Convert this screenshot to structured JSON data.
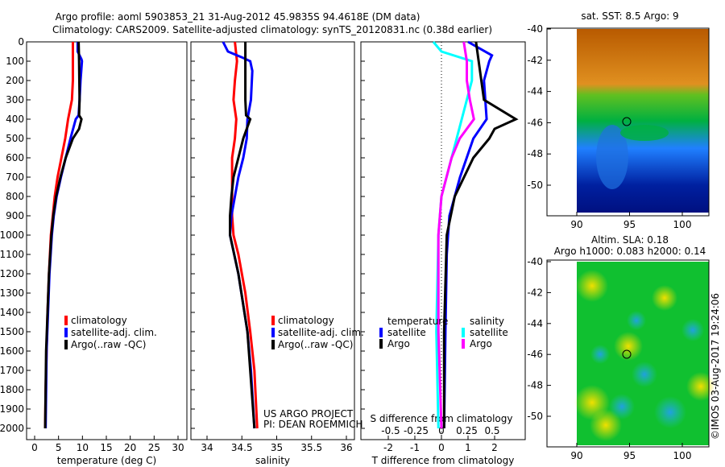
{
  "title_line1": "Argo profile: aoml 5903853_21 31-Aug-2012 45.9835S 94.4618E (DM data)",
  "title_line2": "Climatology: CARS2009. Satellite-adjusted climatology: synTS_20120831.nc (0.38d earlier)",
  "colors": {
    "climatology": "#ff0000",
    "satellite": "#0000ff",
    "argo": "#000000",
    "sal_satellite": "#00ffff",
    "sal_argo": "#ff00ff"
  },
  "chart_data": [
    {
      "type": "line",
      "xlabel": "temperature (deg C)",
      "ylabel": "",
      "xlim": [
        -1,
        31
      ],
      "ylim": [
        2050,
        0
      ],
      "xticks": [
        0,
        5,
        10,
        15,
        20,
        25,
        30
      ],
      "yticks": [
        0,
        100,
        200,
        300,
        400,
        500,
        600,
        700,
        800,
        900,
        1000,
        1100,
        1200,
        1300,
        1400,
        1500,
        1600,
        1700,
        1800,
        1900,
        2000
      ],
      "legend": [
        "climatology",
        "satellite-adj. clim.",
        "Argo(..raw -QC)"
      ],
      "series": [
        {
          "name": "climatology",
          "color": "#ff0000",
          "depth": [
            0,
            100,
            200,
            250,
            300,
            400,
            500,
            600,
            700,
            800,
            900,
            1000,
            1200,
            1400,
            1600,
            1800,
            2000
          ],
          "values": [
            8.0,
            8.0,
            8.0,
            7.9,
            7.8,
            7.0,
            6.4,
            5.6,
            4.8,
            4.2,
            3.8,
            3.4,
            3.0,
            2.7,
            2.5,
            2.3,
            2.2
          ]
        },
        {
          "name": "satellite-adj. clim.",
          "color": "#0000ff",
          "depth": [
            0,
            50,
            90,
            100,
            200,
            300,
            380,
            400,
            500,
            600,
            700,
            800,
            900,
            1000,
            1200,
            1400,
            1600,
            2000
          ],
          "values": [
            9.0,
            9.0,
            9.8,
            9.9,
            9.6,
            9.4,
            9.2,
            8.6,
            7.5,
            6.5,
            5.5,
            4.6,
            4.0,
            3.6,
            3.1,
            2.8,
            2.5,
            2.3
          ]
        },
        {
          "name": "Argo(..raw -QC)",
          "color": "#000000",
          "depth": [
            0,
            100,
            300,
            380,
            400,
            450,
            500,
            600,
            700,
            800,
            900,
            1000,
            1200,
            1400,
            1600,
            2000
          ],
          "values": [
            9.2,
            9.3,
            9.4,
            9.3,
            9.8,
            9.3,
            8.0,
            6.5,
            5.4,
            4.5,
            3.9,
            3.5,
            3.0,
            2.7,
            2.4,
            2.2
          ]
        }
      ]
    },
    {
      "type": "line",
      "xlabel": "salinity",
      "xlim": [
        33.77,
        36.1
      ],
      "ylim": [
        2050,
        0
      ],
      "xticks": [
        34,
        34.5,
        35,
        35.5,
        36
      ],
      "legend": [
        "climatology",
        "satellite-adj. clim.",
        "Argo(..raw -QC)"
      ],
      "annotations": [
        "US ARGO PROJECT",
        "PI: DEAN ROEMMICH"
      ],
      "series": [
        {
          "name": "climatology",
          "color": "#ff0000",
          "depth": [
            0,
            100,
            200,
            300,
            400,
            500,
            600,
            800,
            900,
            1000,
            1100,
            1300,
            1500,
            1700,
            2000
          ],
          "values": [
            34.4,
            34.43,
            34.4,
            34.38,
            34.42,
            34.4,
            34.36,
            34.36,
            34.36,
            34.38,
            34.45,
            34.55,
            34.62,
            34.68,
            34.72
          ]
        },
        {
          "name": "satellite-adj. clim.",
          "color": "#0000ff",
          "depth": [
            0,
            50,
            80,
            100,
            150,
            300,
            400,
            500,
            600,
            700,
            800,
            900,
            1000,
            1200,
            1500,
            1700,
            2000
          ],
          "values": [
            34.23,
            34.3,
            34.5,
            34.62,
            34.65,
            34.63,
            34.58,
            34.57,
            34.52,
            34.45,
            34.4,
            34.35,
            34.33,
            34.45,
            34.58,
            34.63,
            34.68
          ]
        },
        {
          "name": "Argo(..raw -QC)",
          "color": "#000000",
          "depth": [
            0,
            300,
            380,
            400,
            450,
            500,
            600,
            700,
            800,
            900,
            1000,
            1200,
            1500,
            2000
          ],
          "values": [
            34.55,
            34.55,
            34.56,
            34.62,
            34.57,
            34.52,
            34.45,
            34.38,
            34.35,
            34.33,
            34.33,
            34.45,
            34.58,
            34.68
          ]
        }
      ]
    },
    {
      "type": "line",
      "xlabel": "T difference from climatology",
      "x2label": "S difference from climatology",
      "xlim": [
        -3,
        3
      ],
      "ylim": [
        2050,
        0
      ],
      "xticks": [
        -2,
        -1,
        0,
        1,
        2
      ],
      "x2ticks": [
        "-0.5",
        "-0.25",
        "0",
        "0.25",
        "0.5"
      ],
      "legend": {
        "temperature_title": "temperature",
        "salinity_title": "salinity",
        "t_items": [
          "satellite",
          "Argo"
        ],
        "s_items": [
          "satellite",
          "Argo"
        ]
      },
      "series": [
        {
          "name": "temperature satellite",
          "color": "#0000ff",
          "units": "T",
          "depth": [
            0,
            70,
            100,
            200,
            400,
            500,
            700,
            900,
            1100,
            1500,
            2000
          ],
          "values": [
            1.0,
            1.9,
            1.8,
            1.6,
            1.7,
            1.2,
            0.7,
            0.3,
            0.2,
            0.15,
            0.1
          ]
        },
        {
          "name": "temperature Argo",
          "color": "#000000",
          "units": "T",
          "depth": [
            0,
            100,
            300,
            400,
            450,
            500,
            600,
            800,
            1000,
            1500,
            2000
          ],
          "values": [
            1.3,
            1.4,
            1.6,
            2.8,
            2.0,
            1.8,
            1.2,
            0.5,
            0.2,
            0.1,
            0.1
          ]
        },
        {
          "name": "salinity satellite",
          "color": "#00ffff",
          "units": "S",
          "depth": [
            0,
            50,
            100,
            200,
            300,
            400,
            500,
            600,
            800,
            1000,
            1500,
            2000
          ],
          "values": [
            -0.08,
            0.0,
            0.3,
            0.3,
            0.25,
            0.2,
            0.15,
            0.1,
            0.0,
            -0.03,
            -0.05,
            -0.03
          ]
        },
        {
          "name": "salinity Argo",
          "color": "#ff00ff",
          "units": "S",
          "depth": [
            0,
            100,
            200,
            300,
            400,
            500,
            600,
            800,
            1000,
            1500,
            2000
          ],
          "values": [
            0.22,
            0.25,
            0.25,
            0.28,
            0.32,
            0.18,
            0.1,
            0.0,
            -0.03,
            -0.03,
            0.0
          ]
        }
      ]
    }
  ],
  "map1": {
    "title": "sat. SST: 8.5 Argo: 9",
    "yticks": [
      "-40",
      "-42",
      "-44",
      "-46",
      "-48",
      "-50"
    ],
    "xticks": [
      "90",
      "95",
      "100"
    ]
  },
  "map2": {
    "title1": "Altim. SLA: 0.18",
    "title2": "Argo h1000: 0.083 h2000: 0.14",
    "yticks": [
      "-40",
      "-42",
      "-44",
      "-46",
      "-48",
      "-50"
    ],
    "xticks": [
      "90",
      "95",
      "100"
    ]
  },
  "credit": "©IMOS 03-Aug-2017 19:24:06"
}
